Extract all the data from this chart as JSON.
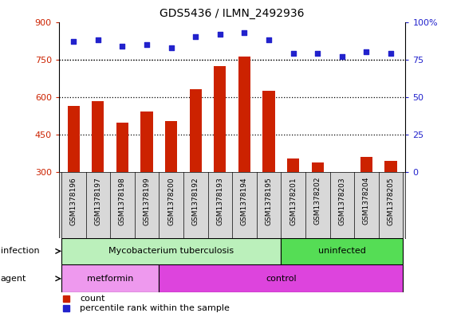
{
  "title": "GDS5436 / ILMN_2492936",
  "samples": [
    "GSM1378196",
    "GSM1378197",
    "GSM1378198",
    "GSM1378199",
    "GSM1378200",
    "GSM1378192",
    "GSM1378193",
    "GSM1378194",
    "GSM1378195",
    "GSM1378201",
    "GSM1378202",
    "GSM1378203",
    "GSM1378204",
    "GSM1378205"
  ],
  "counts": [
    565,
    583,
    497,
    542,
    503,
    630,
    725,
    762,
    625,
    355,
    340,
    302,
    360,
    345
  ],
  "percentiles": [
    87,
    88,
    84,
    85,
    83,
    90,
    92,
    93,
    88,
    79,
    79,
    77,
    80,
    79
  ],
  "ylim_left": [
    300,
    900
  ],
  "ylim_right": [
    0,
    100
  ],
  "yticks_left": [
    300,
    450,
    600,
    750,
    900
  ],
  "yticks_right": [
    0,
    25,
    50,
    75,
    100
  ],
  "bar_color": "#cc2200",
  "dot_color": "#2222cc",
  "bg_color": "#d8d8d8",
  "infection_groups": [
    {
      "label": "Mycobacterium tuberculosis",
      "start": 0,
      "end": 9,
      "color": "#bbf0bb"
    },
    {
      "label": "uninfected",
      "start": 9,
      "end": 14,
      "color": "#55dd55"
    }
  ],
  "agent_groups": [
    {
      "label": "metformin",
      "start": 0,
      "end": 4,
      "color": "#ee99ee"
    },
    {
      "label": "control",
      "start": 4,
      "end": 14,
      "color": "#dd44dd"
    }
  ],
  "infection_label": "infection",
  "agent_label": "agent",
  "legend_count_label": "count",
  "legend_pct_label": "percentile rank within the sample",
  "plot_area_bg": "#ffffff",
  "tick_label_color_left": "#cc2200",
  "tick_label_color_right": "#2222cc",
  "dotted_lines": [
    450,
    600,
    750
  ]
}
